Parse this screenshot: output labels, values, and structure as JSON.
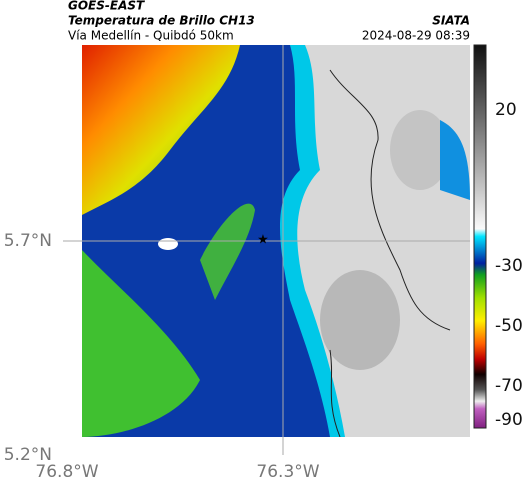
{
  "header": {
    "source": "GOES-EAST",
    "title": "Temperatura de Brillo CH13",
    "subtitle": "Vía Medellín - Quibdó 50km",
    "agency": "SIATA",
    "timestamp": "2024-08-29 08:39"
  },
  "map": {
    "lat_labels": [
      "5.7°N",
      "5.2°N"
    ],
    "lon_labels": [
      "76.8°W",
      "76.3°W"
    ]
  },
  "colorbar": {
    "ticks": [
      "20",
      "-30",
      "-50",
      "-70",
      "-90"
    ]
  }
}
